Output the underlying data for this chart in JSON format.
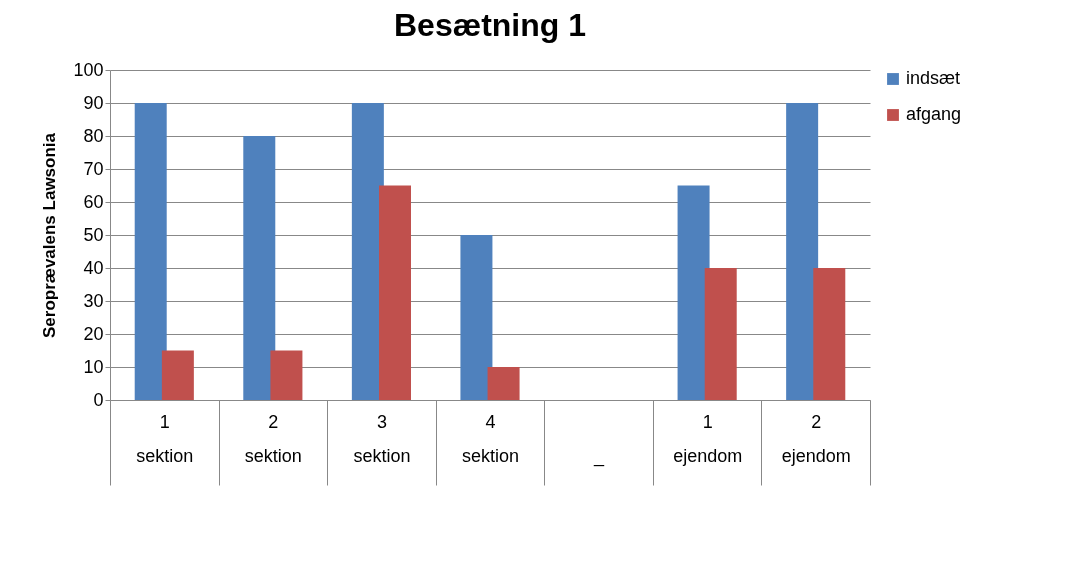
{
  "chart_data": {
    "type": "bar",
    "title": "Besætning 1",
    "ylabel": "Seroprævalens Lawsonia",
    "categories": [
      "1\nsektion",
      "2\nsektion",
      "3\nsektion",
      "4\nsektion",
      "\n_",
      "1\nejendom",
      "2\nejendom"
    ],
    "series": [
      {
        "name": "indsæt",
        "color": "#4f81bd",
        "values": [
          90,
          80,
          90,
          50,
          null,
          65,
          90
        ]
      },
      {
        "name": "afgang",
        "color": "#c0504d",
        "values": [
          15,
          15,
          65,
          10,
          null,
          40,
          40
        ]
      }
    ],
    "ylim": [
      0,
      100
    ],
    "yticks": [
      0,
      10,
      20,
      30,
      40,
      50,
      60,
      70,
      80,
      90,
      100
    ],
    "grid": "y",
    "legend": "right"
  }
}
